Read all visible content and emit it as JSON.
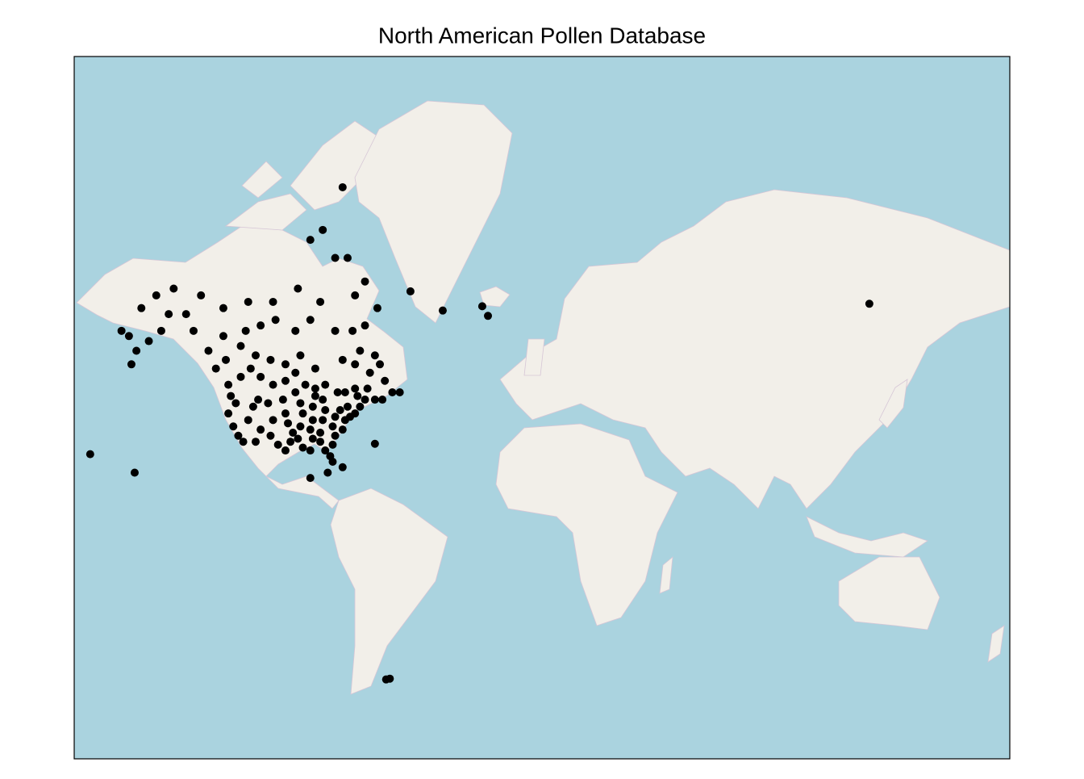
{
  "title": "North American Pollen Database",
  "points": [
    [
      -122,
      47
    ],
    [
      -120,
      45
    ],
    [
      -123,
      42
    ],
    [
      -121,
      38
    ],
    [
      -119,
      35
    ],
    [
      -117,
      33
    ],
    [
      -112,
      33
    ],
    [
      -110,
      37
    ],
    [
      -115,
      40
    ],
    [
      -113,
      44
    ],
    [
      -111,
      46
    ],
    [
      -107,
      45
    ],
    [
      -105,
      40
    ],
    [
      -106,
      35
    ],
    [
      -103,
      32
    ],
    [
      -100,
      30
    ],
    [
      -98,
      33
    ],
    [
      -97,
      36
    ],
    [
      -99,
      39
    ],
    [
      -100,
      42
    ],
    [
      -101,
      46
    ],
    [
      -96,
      48
    ],
    [
      -94,
      45
    ],
    [
      -93,
      42
    ],
    [
      -94,
      38
    ],
    [
      -95,
      34
    ],
    [
      -93,
      31
    ],
    [
      -90,
      30
    ],
    [
      -89,
      34
    ],
    [
      -90,
      37
    ],
    [
      -89,
      40
    ],
    [
      -89,
      44
    ],
    [
      -88,
      47
    ],
    [
      -85,
      46
    ],
    [
      -84,
      43
    ],
    [
      -85,
      40
    ],
    [
      -86,
      36
    ],
    [
      -86,
      33
    ],
    [
      -84,
      30
    ],
    [
      -82,
      28
    ],
    [
      -81,
      26
    ],
    [
      -81,
      32
    ],
    [
      -80,
      35
    ],
    [
      -81,
      38
    ],
    [
      -80,
      41
    ],
    [
      -78,
      43
    ],
    [
      -75,
      44
    ],
    [
      -76,
      40
    ],
    [
      -77,
      37
    ],
    [
      -74,
      41
    ],
    [
      -72,
      42
    ],
    [
      -70,
      44
    ],
    [
      -68,
      46
    ],
    [
      -71,
      47
    ],
    [
      -123,
      50
    ],
    [
      -118,
      52
    ],
    [
      -114,
      54
    ],
    [
      -110,
      52
    ],
    [
      -105,
      50
    ],
    [
      -100,
      51
    ],
    [
      -96,
      53
    ],
    [
      -92,
      50
    ],
    [
      -88,
      49
    ],
    [
      -84,
      50
    ],
    [
      -79,
      48
    ],
    [
      -76,
      48
    ],
    [
      -72,
      49
    ],
    [
      -67,
      49
    ],
    [
      -64,
      46
    ],
    [
      -61,
      46
    ],
    [
      -57,
      48
    ],
    [
      -54,
      48
    ],
    [
      -60,
      51
    ],
    [
      -66,
      53
    ],
    [
      -72,
      55
    ],
    [
      -77,
      56
    ],
    [
      -70,
      58
    ],
    [
      -64,
      57
    ],
    [
      -62,
      55
    ],
    [
      -88,
      54
    ],
    [
      -94,
      57
    ],
    [
      -100,
      55
    ],
    [
      -106,
      56
    ],
    [
      -112,
      57
    ],
    [
      -118,
      59
    ],
    [
      -124,
      56
    ],
    [
      -128,
      54
    ],
    [
      -131,
      58
    ],
    [
      -125,
      61
    ],
    [
      -116,
      62
    ],
    [
      -110,
      63
    ],
    [
      -104,
      64
    ],
    [
      -96,
      62
    ],
    [
      -90,
      64
    ],
    [
      -80,
      62
    ],
    [
      -73,
      62
    ],
    [
      -68,
      63
    ],
    [
      -86,
      67
    ],
    [
      -95,
      69
    ],
    [
      -105,
      67
    ],
    [
      -115,
      67
    ],
    [
      -125,
      66
    ],
    [
      -134,
      68
    ],
    [
      -137,
      62
    ],
    [
      -140,
      65
    ],
    [
      -147,
      65
    ],
    [
      -150,
      62
    ],
    [
      -155,
      60
    ],
    [
      -160,
      58
    ],
    [
      -163,
      61
    ],
    [
      -158,
      66
    ],
    [
      -152,
      68
    ],
    [
      -145,
      69
    ],
    [
      -162,
      55
    ],
    [
      -166,
      62
    ],
    [
      -80,
      73
    ],
    [
      -85,
      76
    ],
    [
      -75,
      73
    ],
    [
      -90,
      75
    ],
    [
      -68,
      70
    ],
    [
      -77,
      79.6
    ],
    [
      -63,
      66
    ],
    [
      -72,
      68
    ],
    [
      -49.7,
      68.6
    ],
    [
      -36.7,
      65.6
    ],
    [
      -20.8,
      66.3
    ],
    [
      -18.5,
      64.7
    ],
    [
      135,
      66.7
    ],
    [
      -160.7,
      22
    ],
    [
      -178.6,
      28.7
    ],
    [
      -59.5,
      -51.7
    ],
    [
      -58,
      -51.5
    ],
    [
      -64,
      32.3
    ],
    [
      -90,
      20
    ],
    [
      -83,
      22
    ],
    [
      -77,
      24
    ]
  ]
}
